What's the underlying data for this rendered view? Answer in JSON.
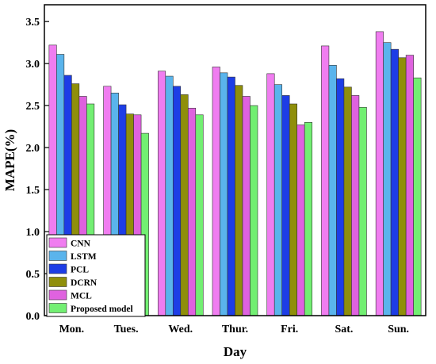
{
  "chart_data": {
    "type": "bar",
    "xlabel": "Day",
    "ylabel": "MAPE(%)",
    "ylim": [
      0,
      3.7
    ],
    "yticks": [
      "0.0",
      "0.5",
      "1.0",
      "1.5",
      "2.0",
      "2.5",
      "3.0",
      "3.5"
    ],
    "categories": [
      "Mon.",
      "Tues.",
      "Wed.",
      "Thur.",
      "Fri.",
      "Sat.",
      "Sun."
    ],
    "legend_position": "bottom-left",
    "grid": false,
    "series": [
      {
        "name": "CNN",
        "color": "#f07df0",
        "values": [
          3.22,
          2.73,
          2.91,
          2.96,
          2.88,
          3.21,
          3.38
        ]
      },
      {
        "name": "LSTM",
        "color": "#5ab4ec",
        "values": [
          3.11,
          2.65,
          2.85,
          2.89,
          2.75,
          2.98,
          3.25
        ]
      },
      {
        "name": "PCL",
        "color": "#1d3de6",
        "values": [
          2.86,
          2.51,
          2.73,
          2.84,
          2.62,
          2.82,
          3.17
        ]
      },
      {
        "name": "DCRN",
        "color": "#8f8f0a",
        "values": [
          2.76,
          2.4,
          2.63,
          2.74,
          2.52,
          2.72,
          3.07
        ]
      },
      {
        "name": "MCL",
        "color": "#df62df",
        "values": [
          2.61,
          2.39,
          2.47,
          2.61,
          2.27,
          2.62,
          3.1
        ]
      },
      {
        "name": "Proposed model",
        "color": "#72ef72",
        "values": [
          2.52,
          2.17,
          2.39,
          2.5,
          2.3,
          2.48,
          2.83
        ]
      }
    ]
  }
}
